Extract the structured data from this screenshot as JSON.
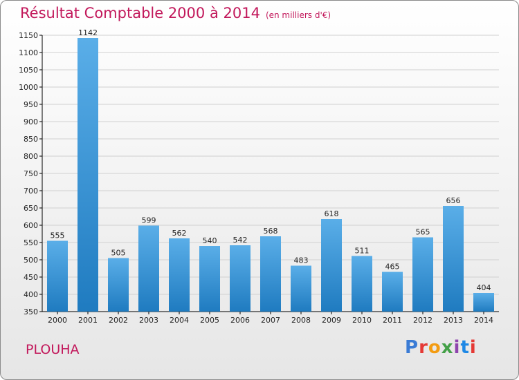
{
  "header": {
    "title": "Résultat Comptable 2000 à 2014",
    "subtitle": "(en milliers d'€)"
  },
  "footer": {
    "commune": "PLOUHA",
    "logo_text": "Proxiti"
  },
  "colors": {
    "title": "#c2185b",
    "bar_light": "#5aaee8",
    "bar_dark": "#1f7bc0",
    "grid": "#d0d0d0",
    "axis": "#000000"
  },
  "chart_data": {
    "type": "bar",
    "title": "Résultat Comptable 2000 à 2014",
    "subtitle": "(en milliers d'€)",
    "xlabel": "",
    "ylabel": "",
    "categories": [
      "2000",
      "2001",
      "2002",
      "2003",
      "2004",
      "2005",
      "2006",
      "2007",
      "2008",
      "2009",
      "2010",
      "2011",
      "2012",
      "2013",
      "2014"
    ],
    "values": [
      555,
      1142,
      505,
      599,
      562,
      540,
      542,
      568,
      483,
      618,
      511,
      465,
      565,
      656,
      404
    ],
    "ylim": [
      350,
      1150
    ],
    "yticks": [
      350,
      400,
      450,
      500,
      550,
      600,
      650,
      700,
      750,
      800,
      850,
      900,
      950,
      1000,
      1050,
      1100,
      1150
    ],
    "grid": true,
    "data_labels": true,
    "legend": "none"
  }
}
